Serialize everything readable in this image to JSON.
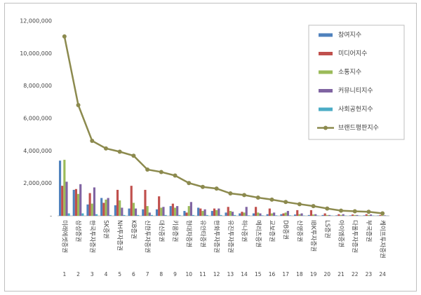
{
  "chart_data": {
    "type": "bar",
    "categories": [
      "미래에셋증권",
      "삼성증권",
      "한국투자증권",
      "SK증권",
      "NH투자증권",
      "KB증권",
      "신한투자증권",
      "대신증권",
      "키움증권",
      "현대차증권",
      "유안타증권",
      "한화투자증권",
      "유진투자증권",
      "하나증권",
      "메리츠증권",
      "교보증권",
      "DB증권",
      "신영증권",
      "IBK투자증권",
      "LS증권",
      "아이엠증권",
      "다올투자증권",
      "부국증권",
      "케이프투자증권"
    ],
    "ranks": [
      1,
      2,
      3,
      4,
      5,
      6,
      7,
      8,
      9,
      10,
      11,
      12,
      13,
      14,
      15,
      16,
      17,
      18,
      19,
      20,
      21,
      22,
      23,
      24
    ],
    "series": [
      {
        "name": "참여지수",
        "type": "bar",
        "color": "#4f81bd",
        "values": [
          3400000,
          1600000,
          700000,
          1100000,
          650000,
          450000,
          400000,
          400000,
          600000,
          300000,
          500000,
          300000,
          200000,
          150000,
          150000,
          100000,
          100000,
          80000,
          50000,
          50000,
          30000,
          30000,
          30000,
          20000
        ]
      },
      {
        "name": "미디어지수",
        "type": "bar",
        "color": "#c0504d",
        "values": [
          1850000,
          1650000,
          1400000,
          800000,
          1600000,
          1850000,
          1600000,
          1200000,
          750000,
          200000,
          450000,
          450000,
          550000,
          250000,
          550000,
          450000,
          150000,
          350000,
          350000,
          150000,
          100000,
          80000,
          100000,
          50000
        ]
      },
      {
        "name": "소통지수",
        "type": "bar",
        "color": "#9bbb59",
        "values": [
          3450000,
          1350000,
          750000,
          1000000,
          950000,
          800000,
          600000,
          500000,
          500000,
          600000,
          300000,
          350000,
          300000,
          200000,
          200000,
          150000,
          200000,
          100000,
          80000,
          50000,
          50000,
          50000,
          50000,
          30000
        ]
      },
      {
        "name": "커뮤니티지수",
        "type": "bar",
        "color": "#8064a2",
        "values": [
          2100000,
          1950000,
          1750000,
          1100000,
          500000,
          450000,
          200000,
          550000,
          600000,
          850000,
          400000,
          450000,
          250000,
          550000,
          150000,
          200000,
          300000,
          150000,
          100000,
          50000,
          100000,
          50000,
          80000,
          30000
        ]
      },
      {
        "name": "사회공헌지수",
        "type": "bar",
        "color": "#4bacc6",
        "values": [
          150000,
          150000,
          100000,
          50000,
          50000,
          50000,
          50000,
          50000,
          50000,
          50000,
          50000,
          50000,
          50000,
          30000,
          30000,
          30000,
          30000,
          20000,
          20000,
          20000,
          20000,
          20000,
          20000,
          10000
        ]
      },
      {
        "name": "브랜드평판지수",
        "type": "line",
        "color": "#8c8a4e",
        "values": [
          11050000,
          6820000,
          4620000,
          4150000,
          3950000,
          3700000,
          2850000,
          2700000,
          2480000,
          2020000,
          1780000,
          1680000,
          1380000,
          1280000,
          1120000,
          1000000,
          850000,
          720000,
          600000,
          450000,
          320000,
          280000,
          250000,
          150000
        ]
      }
    ],
    "ylim": [
      0,
      12000000
    ],
    "yticks": [
      {
        "value": 0,
        "label": "-"
      },
      {
        "value": 2000000,
        "label": "2,000,000"
      },
      {
        "value": 4000000,
        "label": "4,000,000"
      },
      {
        "value": 6000000,
        "label": "6,000,000"
      },
      {
        "value": 8000000,
        "label": "8,000,000"
      },
      {
        "value": 10000000,
        "label": "10,000,000"
      },
      {
        "value": 12000000,
        "label": "12,000,000"
      }
    ],
    "grid": false,
    "legend": "top-right"
  }
}
